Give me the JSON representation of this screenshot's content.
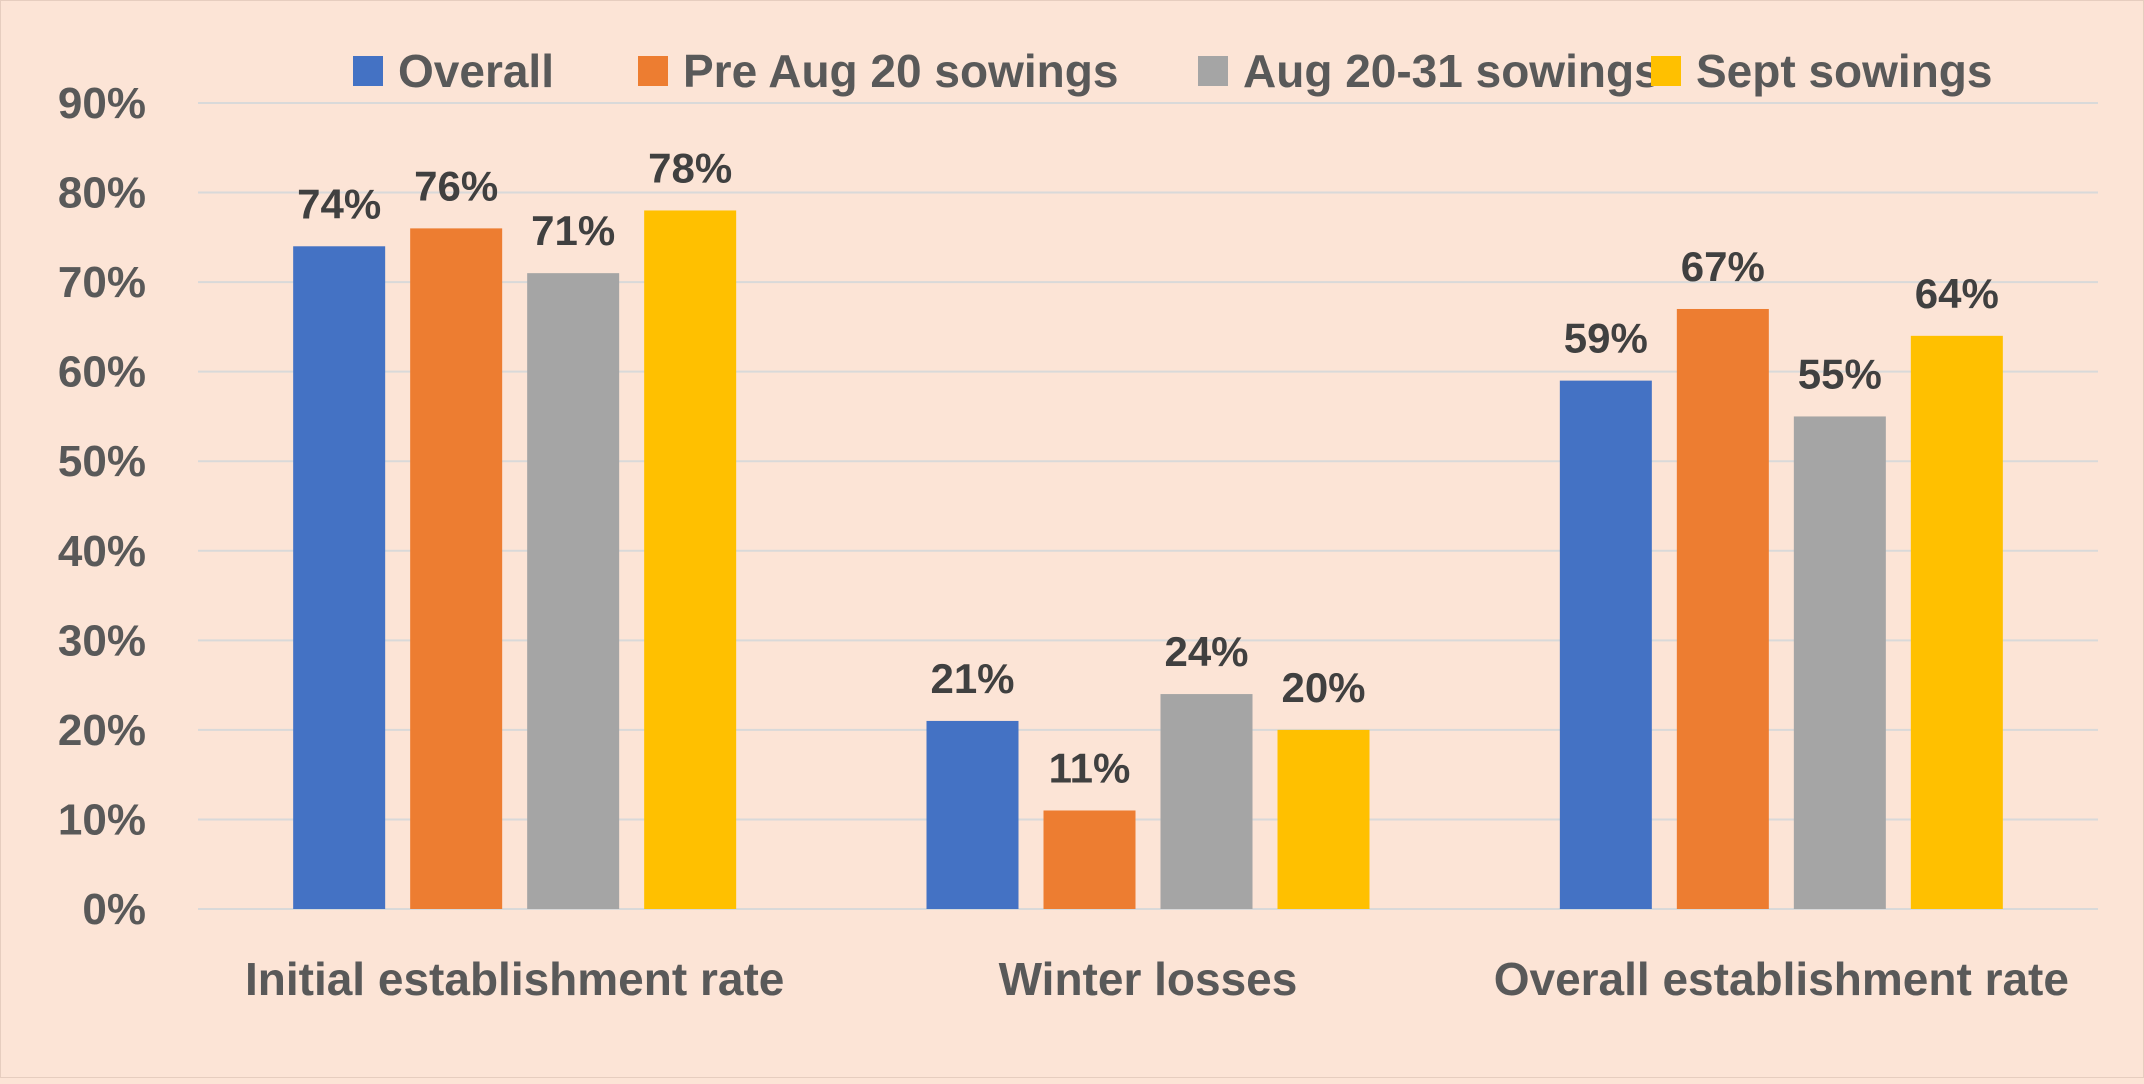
{
  "chart_data": {
    "type": "bar",
    "title": "",
    "xlabel": "",
    "ylabel": "",
    "categories": [
      "Initial establishment rate",
      "Winter losses",
      "Overall establishment rate"
    ],
    "series": [
      {
        "name": "Overall",
        "color": "#4472c4",
        "values": [
          74,
          21,
          59
        ],
        "labels": [
          "74%",
          "21%",
          "59%"
        ]
      },
      {
        "name": "Pre Aug 20 sowings",
        "color": "#ed7d31",
        "values": [
          76,
          11,
          67
        ],
        "labels": [
          "76%",
          "11%",
          "67%"
        ]
      },
      {
        "name": "Aug 20-31 sowings",
        "color": "#a5a5a5",
        "values": [
          71,
          24,
          55
        ],
        "labels": [
          "71%",
          "24%",
          "55%"
        ]
      },
      {
        "name": "Sept sowings",
        "color": "#ffc000",
        "values": [
          78,
          20,
          64
        ],
        "labels": [
          "78%",
          "20%",
          "64%"
        ]
      }
    ],
    "ylim": [
      0,
      90
    ],
    "yticks": [
      0,
      10,
      20,
      30,
      40,
      50,
      60,
      70,
      80,
      90
    ],
    "ytick_labels": [
      "0%",
      "10%",
      "20%",
      "30%",
      "40%",
      "50%",
      "60%",
      "70%",
      "80%",
      "90%"
    ],
    "grid": true,
    "legend": "top",
    "background": "#fce4d6"
  }
}
